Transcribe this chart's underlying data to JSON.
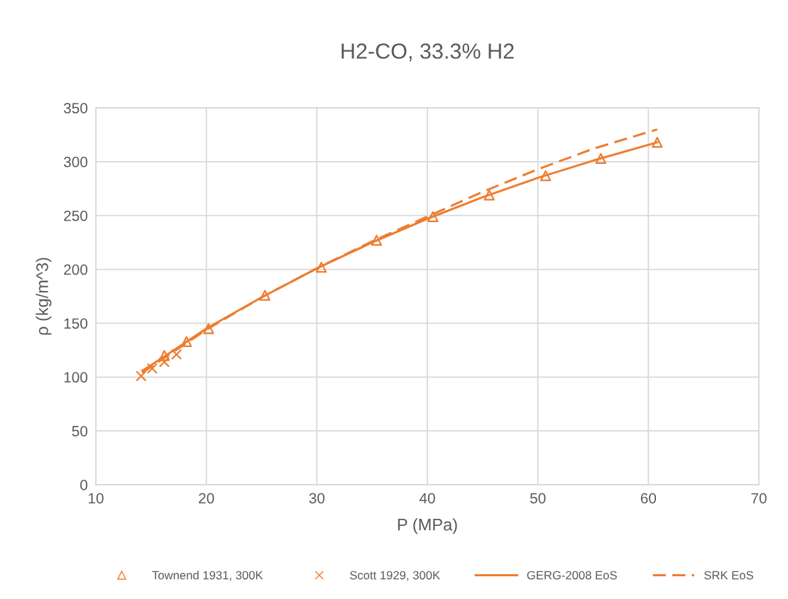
{
  "chart_data": {
    "type": "scatter",
    "title": "H2-CO, 33.3% H2",
    "xlabel": "P (MPa)",
    "ylabel": "ρ (kg/m^3)",
    "xlim": [
      10,
      70
    ],
    "xticks": [
      10,
      20,
      30,
      40,
      50,
      60,
      70
    ],
    "ylim": [
      0,
      350
    ],
    "yticks": [
      0,
      50,
      100,
      150,
      200,
      250,
      300,
      350
    ],
    "grid": true,
    "legend": "bottom",
    "series": [
      {
        "name": "Townend 1931, 300K",
        "marker": "triangle",
        "color": "#ed7d31",
        "x": [
          16.2,
          18.2,
          20.2,
          25.3,
          30.4,
          35.4,
          40.5,
          45.6,
          50.7,
          55.7,
          60.8
        ],
        "values": [
          120,
          133,
          145,
          176,
          202,
          227,
          249,
          269,
          287,
          303,
          318
        ]
      },
      {
        "name": "Scott 1929, 300K",
        "marker": "cross",
        "color": "#ed7d31",
        "x": [
          14.1,
          15.1,
          16.2,
          17.3
        ],
        "values": [
          101,
          108,
          114,
          121
        ]
      },
      {
        "name": "GERG-2008 EoS",
        "type": "line",
        "line_style": "solid",
        "color": "#ed7d31",
        "x": [
          14.2,
          15,
          20,
          25,
          30,
          35,
          40,
          45,
          50,
          55,
          60.8
        ],
        "values": [
          106,
          111,
          145,
          174,
          201,
          225,
          247,
          267,
          285,
          301,
          318
        ]
      },
      {
        "name": "SRK EoS",
        "type": "line",
        "line_style": "dashed",
        "color": "#ed7d31",
        "x": [
          14.2,
          20,
          25,
          30,
          35,
          40,
          45,
          50,
          55,
          60.8
        ],
        "values": [
          104,
          144,
          174,
          201,
          226,
          249,
          272,
          293,
          312,
          330
        ]
      }
    ]
  }
}
